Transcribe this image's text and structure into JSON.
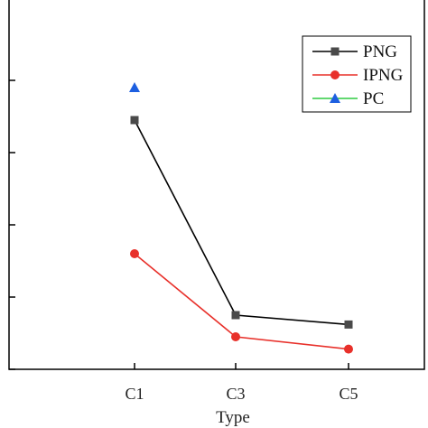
{
  "chart_data": {
    "type": "line",
    "title": "",
    "xlabel": "Type",
    "ylabel": "",
    "categories": [
      "C1",
      "C3",
      "C5"
    ],
    "ylim": [
      0,
      5
    ],
    "yticks": [
      0,
      1,
      2,
      3,
      4
    ],
    "legend_position": "top-right",
    "series": [
      {
        "name": "PNG",
        "color": "#000000",
        "marker": "square",
        "marker_color": "#4a4a4a",
        "values": [
          3.45,
          0.75,
          0.62
        ]
      },
      {
        "name": "IPNG",
        "color": "#e8302a",
        "marker": "circle",
        "marker_color": "#e8302a",
        "values": [
          1.6,
          0.45,
          0.28
        ]
      },
      {
        "name": "PC",
        "color": "#2ecc40",
        "marker": "triangle",
        "marker_color": "#1d5fe0",
        "values": [
          3.9,
          null,
          null
        ]
      }
    ]
  }
}
